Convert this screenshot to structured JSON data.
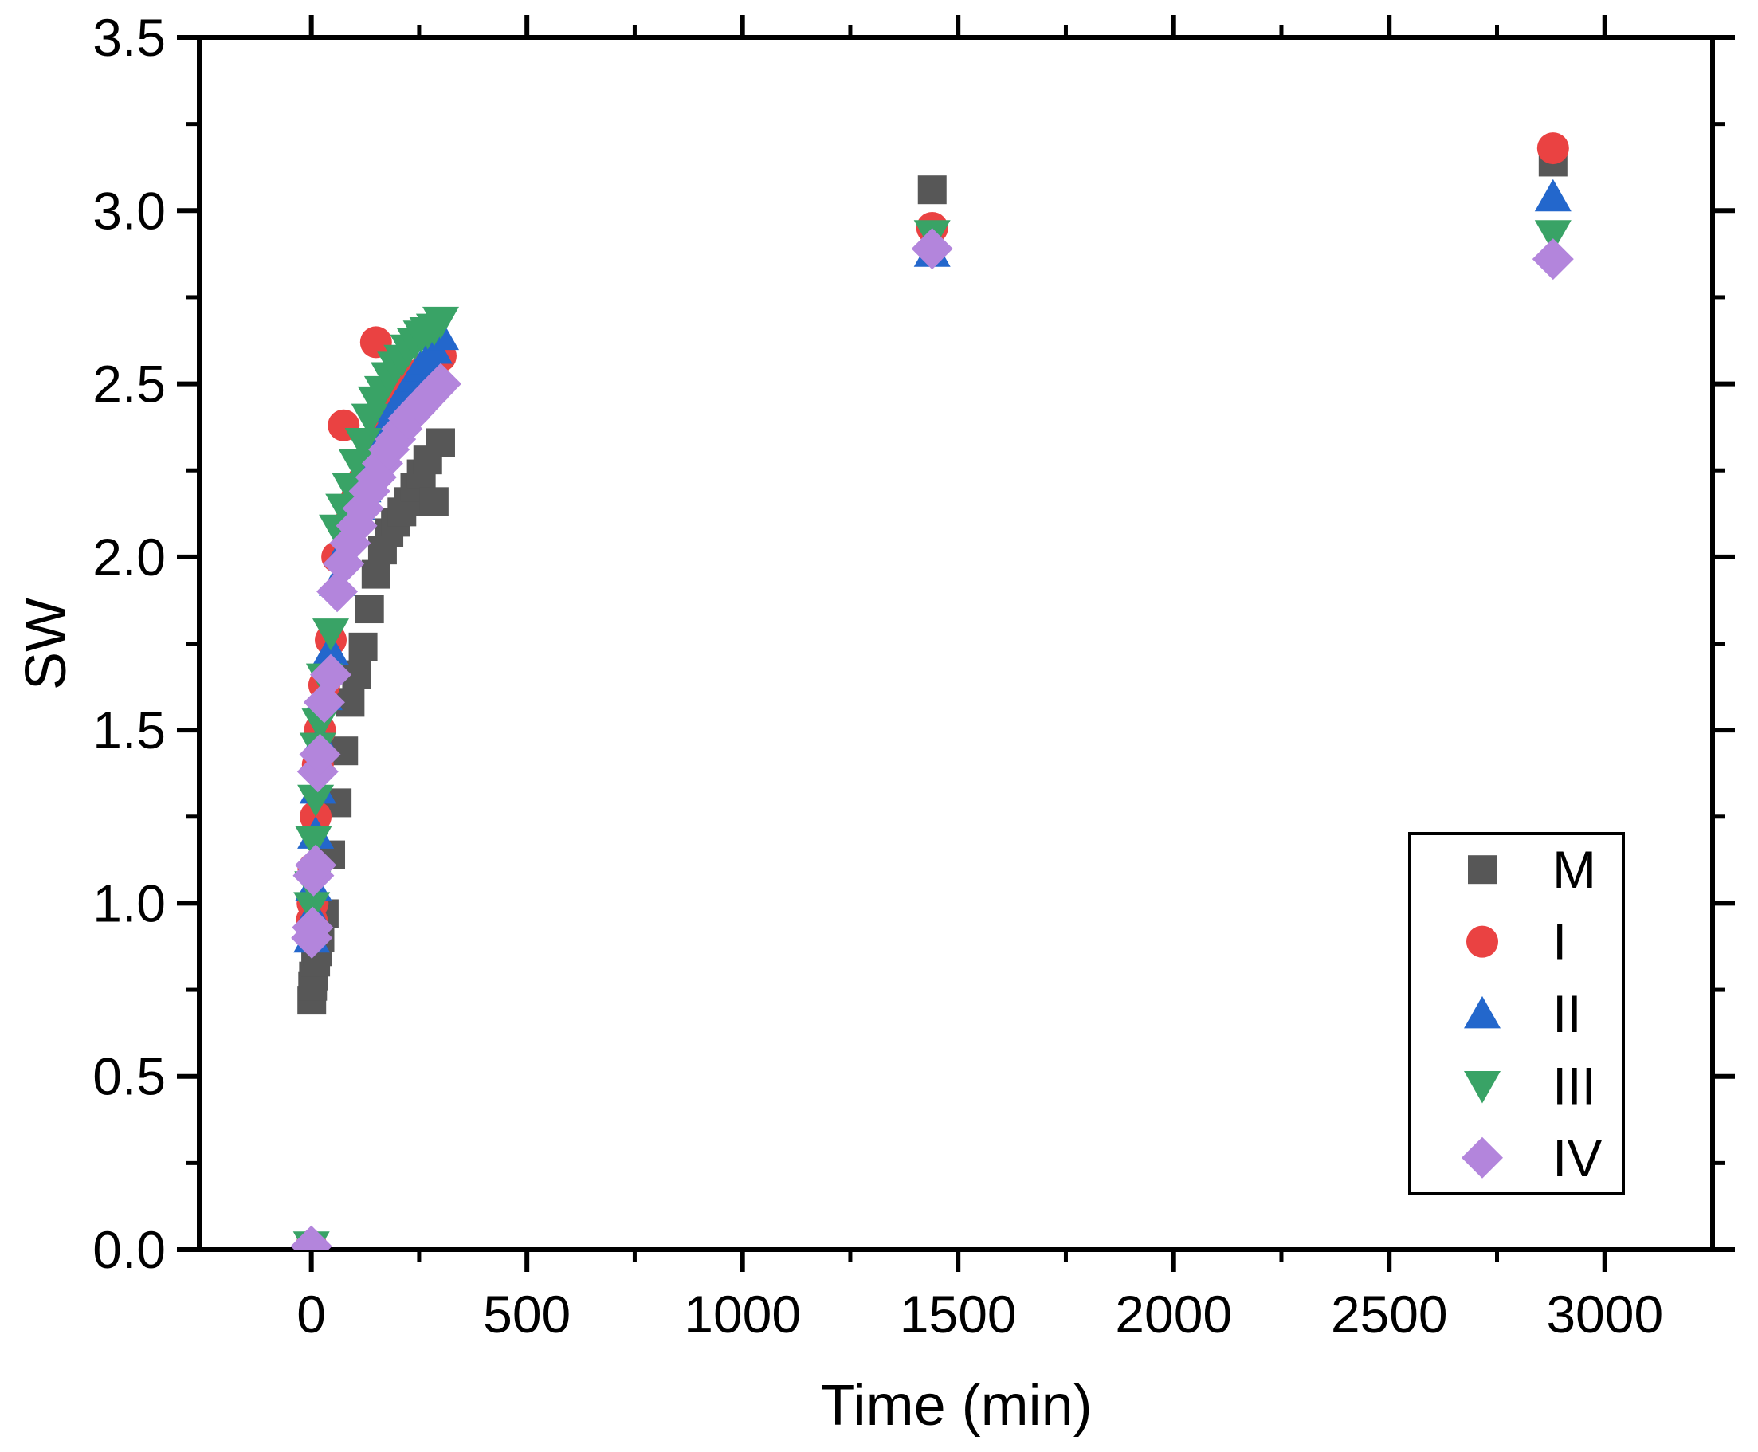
{
  "chart_data": {
    "type": "scatter",
    "title": "",
    "xlabel": "Time (min)",
    "ylabel": "SW",
    "xlim": [
      -260,
      3250
    ],
    "ylim": [
      0,
      3.5
    ],
    "grid": false,
    "legend_position": "lower-right",
    "x_major_ticks": [
      0,
      500,
      1000,
      1500,
      2000,
      2500,
      3000
    ],
    "x_tick_labels": [
      "0",
      "500",
      "1000",
      "1500",
      "2000",
      "2500",
      "3000"
    ],
    "x_minor_ticks": [
      250,
      750,
      1250,
      1750,
      2250,
      2750
    ],
    "y_major_ticks": [
      0,
      0.5,
      1,
      1.5,
      2,
      2.5,
      3,
      3.5
    ],
    "y_tick_labels": [
      "0.0",
      "0.5",
      "1.0",
      "1.5",
      "2.0",
      "2.5",
      "3.0",
      "3.5"
    ],
    "y_minor_ticks": [
      0.25,
      0.75,
      1.25,
      1.75,
      2.25,
      2.75,
      3.25
    ],
    "x": [
      0,
      1,
      3,
      5,
      10,
      15,
      20,
      30,
      45,
      60,
      75,
      90,
      105,
      120,
      135,
      150,
      165,
      180,
      195,
      210,
      225,
      240,
      255,
      270,
      285,
      300,
      1440,
      2880
    ],
    "series": [
      {
        "name": "M",
        "marker": "square",
        "color": "#575757",
        "size": 36,
        "values": [
          0.01,
          0.72,
          0.76,
          0.79,
          0.83,
          0.86,
          0.9,
          0.97,
          1.14,
          1.29,
          1.44,
          1.58,
          1.66,
          1.74,
          1.85,
          1.95,
          2.02,
          2.07,
          2.1,
          2.13,
          2.16,
          2.2,
          2.24,
          2.28,
          2.16,
          2.33,
          3.06,
          3.14
        ]
      },
      {
        "name": "I",
        "marker": "circle",
        "color": "#ea4242",
        "size": 40,
        "values": [
          0.01,
          0.95,
          1.0,
          1.1,
          1.25,
          1.4,
          1.5,
          1.63,
          1.76,
          2.0,
          2.38,
          2.1,
          2.17,
          2.22,
          2.28,
          2.62,
          2.35,
          2.4,
          2.43,
          2.46,
          2.48,
          2.51,
          2.53,
          2.55,
          2.56,
          2.58,
          2.95,
          3.18
        ]
      },
      {
        "name": "II",
        "marker": "triangle-up",
        "color": "#2367cc",
        "size": 46,
        "values": [
          0.01,
          0.9,
          0.97,
          1.05,
          1.2,
          1.33,
          1.47,
          1.6,
          1.73,
          1.93,
          2.02,
          2.08,
          2.15,
          2.2,
          2.26,
          2.31,
          2.35,
          2.39,
          2.43,
          2.46,
          2.49,
          2.52,
          2.55,
          2.57,
          2.6,
          2.64,
          2.88,
          3.04
        ]
      },
      {
        "name": "III",
        "marker": "triangle-down",
        "color": "#39a366",
        "size": 46,
        "values": [
          0.01,
          0.99,
          1.05,
          1.18,
          1.3,
          1.45,
          1.52,
          1.65,
          1.78,
          2.08,
          2.14,
          2.2,
          2.27,
          2.33,
          2.4,
          2.45,
          2.48,
          2.52,
          2.55,
          2.57,
          2.6,
          2.62,
          2.64,
          2.65,
          2.66,
          2.68,
          2.93,
          2.93
        ]
      },
      {
        "name": "IV",
        "marker": "diamond",
        "color": "#b385dc",
        "size": 52,
        "values": [
          0.01,
          0.9,
          0.93,
          1.08,
          1.11,
          1.38,
          1.43,
          1.58,
          1.66,
          1.9,
          1.98,
          2.04,
          2.09,
          2.14,
          2.19,
          2.23,
          2.27,
          2.31,
          2.34,
          2.37,
          2.4,
          2.42,
          2.44,
          2.46,
          2.48,
          2.5,
          2.89,
          2.86
        ]
      }
    ],
    "frame_color": "#000000"
  }
}
